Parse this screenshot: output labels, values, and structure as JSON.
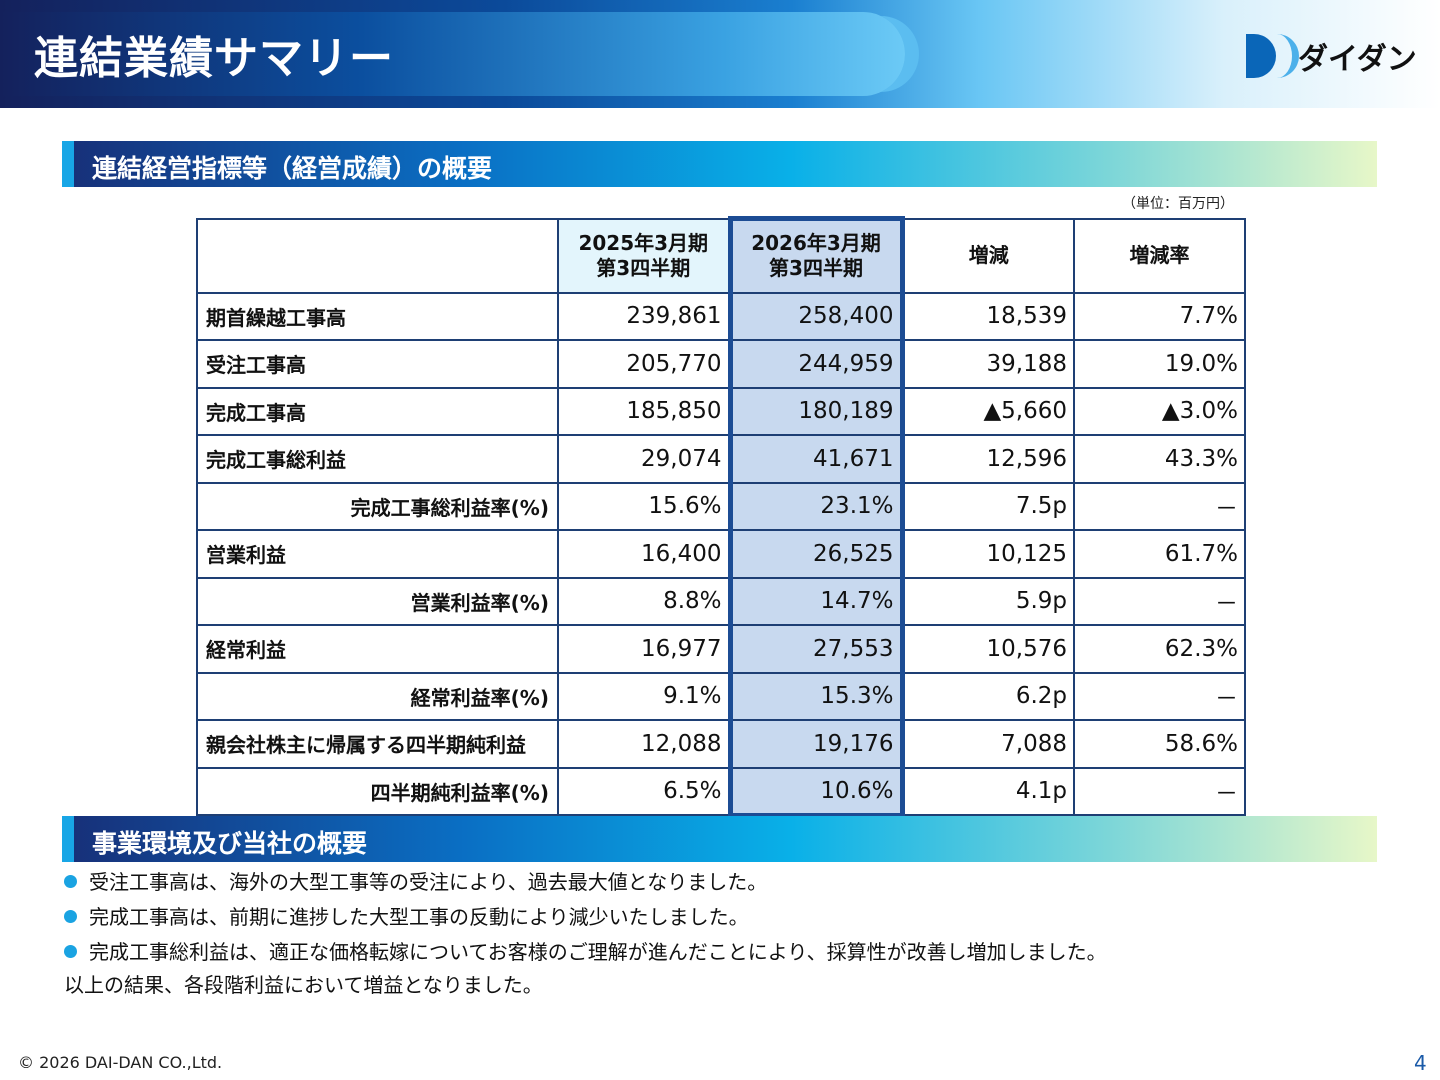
{
  "header": {
    "title": "連結業績サマリー",
    "logo_text": "ダイダン"
  },
  "section1": {
    "title": "連結経営指標等（経営成績）の概要",
    "unit": "（単位：百万円）"
  },
  "table": {
    "col1": [
      "2025年3月期",
      "第3四半期"
    ],
    "col2": [
      "2026年3月期",
      "第3四半期"
    ],
    "col3": "増減",
    "col4": "増減率",
    "rows": [
      {
        "label": "期首繰越工事高",
        "sub": false,
        "v": [
          "239,861",
          "258,400",
          "18,539",
          "7.7%"
        ]
      },
      {
        "label": "受注工事高",
        "sub": false,
        "v": [
          "205,770",
          "244,959",
          "39,188",
          "19.0%"
        ]
      },
      {
        "label": "完成工事高",
        "sub": false,
        "v": [
          "185,850",
          "180,189",
          "▲5,660",
          "▲3.0%"
        ]
      },
      {
        "label": "完成工事総利益",
        "sub": false,
        "v": [
          "29,074",
          "41,671",
          "12,596",
          "43.3%"
        ]
      },
      {
        "label": "完成工事総利益率(%)",
        "sub": true,
        "v": [
          "15.6%",
          "23.1%",
          "7.5p",
          "－"
        ]
      },
      {
        "label": "営業利益",
        "sub": false,
        "v": [
          "16,400",
          "26,525",
          "10,125",
          "61.7%"
        ]
      },
      {
        "label": "営業利益率(%)",
        "sub": true,
        "v": [
          "8.8%",
          "14.7%",
          "5.9p",
          "－"
        ]
      },
      {
        "label": "経常利益",
        "sub": false,
        "v": [
          "16,977",
          "27,553",
          "10,576",
          "62.3%"
        ]
      },
      {
        "label": "経常利益率(%)",
        "sub": true,
        "v": [
          "9.1%",
          "15.3%",
          "6.2p",
          "－"
        ]
      },
      {
        "label": "親会社株主に帰属する四半期純利益",
        "sub": false,
        "v": [
          "12,088",
          "19,176",
          "7,088",
          "58.6%"
        ]
      },
      {
        "label": "四半期純利益率(%)",
        "sub": true,
        "v": [
          "6.5%",
          "10.6%",
          "4.1p",
          "－"
        ]
      }
    ]
  },
  "section2": {
    "title": "事業環境及び当社の概要",
    "bullets": [
      "受注工事高は、海外の大型工事等の受注により、過去最大値となりました。",
      "完成工事高は、前期に進捗した大型工事の反動により減少いたしました。",
      "完成工事総利益は、適正な価格転嫁についてお客様のご理解が進んだことにより、採算性が改善し増加しました。"
    ],
    "conclusion": "以上の結果、各段階利益において増益となりました。"
  },
  "footer": {
    "copyright": "© 2026 DAI-DAN CO.,Ltd.",
    "page": "4"
  },
  "colors": {
    "accent": "#1aa3e2",
    "table_border": "#1e3f74",
    "highlight_col": "#c8d9ef"
  }
}
